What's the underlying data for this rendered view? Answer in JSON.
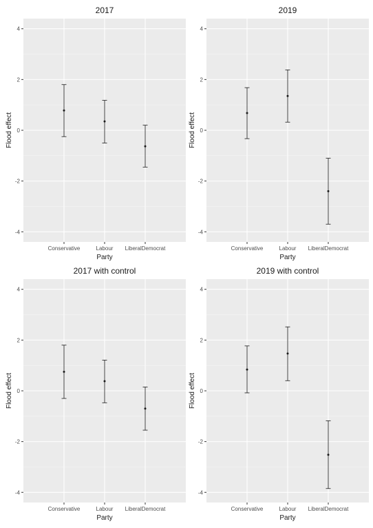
{
  "chart_data": [
    {
      "type": "errorbar",
      "title": "2017",
      "xlabel": "Party",
      "ylabel": "Flood effect",
      "ylim": [
        -4.4,
        4.4
      ],
      "yticks": [
        -4,
        -2,
        0,
        2,
        4
      ],
      "categories": [
        "Conservative",
        "Labour",
        "LiberalDemocrat"
      ],
      "values": [
        0.78,
        0.35,
        -0.63
      ],
      "lower": [
        -0.25,
        -0.5,
        -1.45
      ],
      "upper": [
        1.8,
        1.18,
        0.2
      ]
    },
    {
      "type": "errorbar",
      "title": "2019",
      "xlabel": "Party",
      "ylabel": "Flood effect",
      "ylim": [
        -4.4,
        4.4
      ],
      "yticks": [
        -4,
        -2,
        0,
        2,
        4
      ],
      "categories": [
        "Conservative",
        "Labour",
        "LiberalDemocrat"
      ],
      "values": [
        0.68,
        1.35,
        -2.4
      ],
      "lower": [
        -0.33,
        0.32,
        -3.7
      ],
      "upper": [
        1.68,
        2.38,
        -1.1
      ]
    },
    {
      "type": "errorbar",
      "title": "2017 with control",
      "xlabel": "Party",
      "ylabel": "Flood effect",
      "ylim": [
        -4.4,
        4.4
      ],
      "yticks": [
        -4,
        -2,
        0,
        2,
        4
      ],
      "categories": [
        "Conservative",
        "Labour",
        "LiberalDemocrat"
      ],
      "values": [
        0.75,
        0.38,
        -0.7
      ],
      "lower": [
        -0.3,
        -0.47,
        -1.55
      ],
      "upper": [
        1.8,
        1.21,
        0.15
      ]
    },
    {
      "type": "errorbar",
      "title": "2019 with control",
      "xlabel": "Party",
      "ylabel": "Flood effect",
      "ylim": [
        -4.4,
        4.4
      ],
      "yticks": [
        -4,
        -2,
        0,
        2,
        4
      ],
      "categories": [
        "Conservative",
        "Labour",
        "LiberalDemocrat"
      ],
      "values": [
        0.84,
        1.47,
        -2.52
      ],
      "lower": [
        -0.08,
        0.4,
        -3.85
      ],
      "upper": [
        1.77,
        2.52,
        -1.18
      ]
    }
  ]
}
